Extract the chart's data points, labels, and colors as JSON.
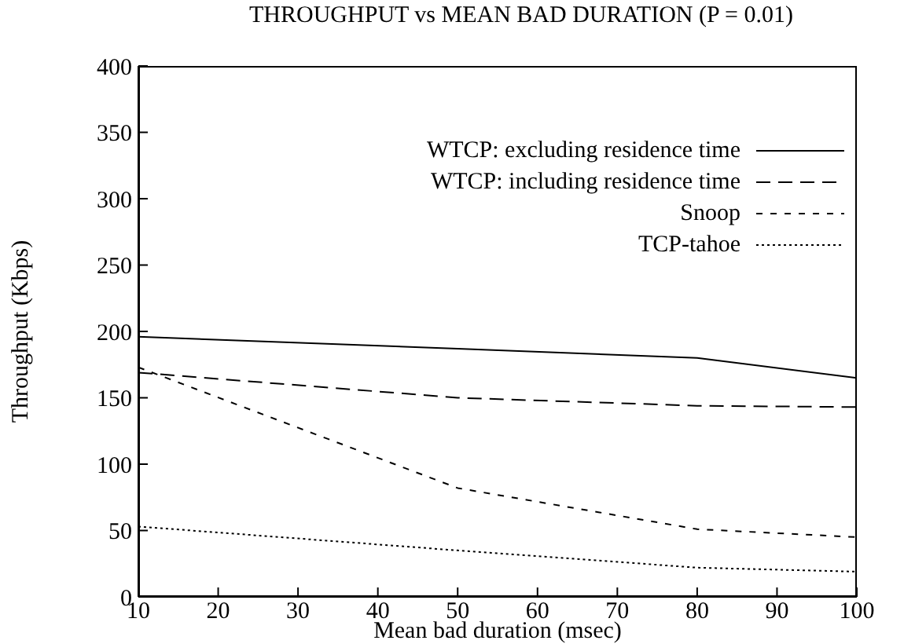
{
  "chart_data": {
    "type": "line",
    "title": "THROUGHPUT vs MEAN BAD DURATION (P = 0.01)",
    "xlabel": "Mean bad duration (msec)",
    "ylabel": "Throughput (Kbps)",
    "x": [
      10,
      50,
      80,
      100
    ],
    "series": [
      {
        "name": "WTCP: excluding residence time",
        "color": "#000000",
        "line_style": "solid",
        "values": [
          196,
          187,
          180,
          165
        ]
      },
      {
        "name": "WTCP: including residence time",
        "color": "#000000",
        "line_style": "dashed",
        "values": [
          169,
          150,
          144,
          143
        ]
      },
      {
        "name": "Snoop",
        "color": "#000000",
        "line_style": "dashed",
        "values": [
          173,
          82,
          51,
          45
        ]
      },
      {
        "name": "TCP-tahoe",
        "color": "#000000",
        "line_style": "dotted",
        "values": [
          53,
          35,
          22,
          19
        ]
      }
    ],
    "xlim": [
      10,
      100
    ],
    "xticks": [
      10,
      20,
      30,
      40,
      50,
      60,
      70,
      80,
      90,
      100
    ],
    "ylim": [
      0,
      400
    ],
    "yticks": [
      0,
      50,
      100,
      150,
      200,
      250,
      300,
      350,
      400
    ],
    "grid": false,
    "legend": "top right",
    "marker": "none"
  }
}
